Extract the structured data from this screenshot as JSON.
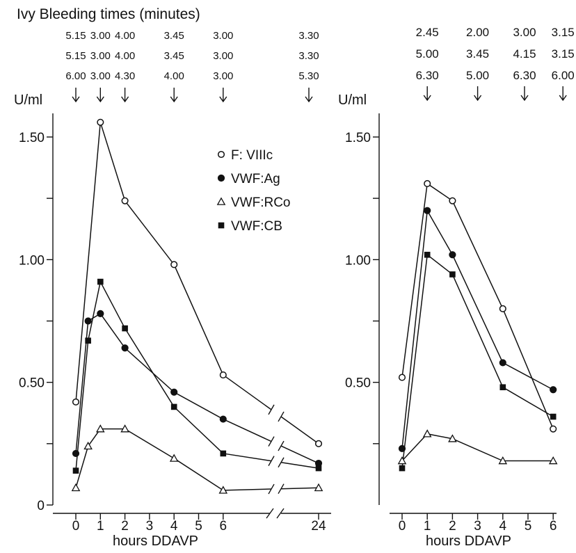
{
  "header": {
    "title": "Ivy Bleeding times (minutes)"
  },
  "chart_data": [
    {
      "type": "line",
      "panel": "left",
      "ylabel": "U/ml",
      "xlabel": "hours DDAVP",
      "ylim": [
        0,
        1.65
      ],
      "yticks": [
        0,
        0.25,
        0.5,
        0.75,
        1.0,
        1.25,
        1.5
      ],
      "ytick_labels": [
        "0",
        "",
        "0.50",
        "",
        "1.00",
        "",
        "1.50"
      ],
      "xticks": [
        0,
        1,
        2,
        3,
        4,
        5,
        6,
        24
      ],
      "xtick_labels": [
        "0",
        "1",
        "2",
        "3",
        "4",
        "5",
        "6",
        "24"
      ],
      "axis_break": "between 6 and 24",
      "legend_position": "upper-middle",
      "bleeding_times": {
        "x": [
          0,
          1,
          2,
          4,
          6,
          24
        ],
        "rows": [
          [
            "5.15",
            "3.00",
            "4.00",
            "3.45",
            "3.00",
            "3.30"
          ],
          [
            "5.15",
            "3.00",
            "4.00",
            "3.45",
            "3.00",
            "3.30"
          ],
          [
            "6.00",
            "3.00",
            "4.30",
            "4.00",
            "3.00",
            "5.30"
          ]
        ]
      },
      "series": [
        {
          "name": "F: VIIIc",
          "marker": "open-circle",
          "x": [
            0,
            1,
            2,
            4,
            6,
            24
          ],
          "y": [
            0.42,
            1.56,
            1.24,
            0.98,
            0.53,
            0.25
          ]
        },
        {
          "name": "VWF:Ag",
          "marker": "filled-circle",
          "x": [
            0,
            0.5,
            1,
            2,
            4,
            6,
            24
          ],
          "y": [
            0.21,
            0.75,
            0.78,
            0.64,
            0.46,
            0.35,
            0.17
          ]
        },
        {
          "name": "VWF:RCo",
          "marker": "open-triangle",
          "x": [
            0,
            0.5,
            1,
            2,
            4,
            6,
            24
          ],
          "y": [
            0.07,
            0.24,
            0.31,
            0.31,
            0.19,
            0.06,
            0.07
          ]
        },
        {
          "name": "VWF:CB",
          "marker": "filled-square",
          "x": [
            0,
            0.5,
            1,
            2,
            4,
            6,
            24
          ],
          "y": [
            0.14,
            0.67,
            0.91,
            0.72,
            0.4,
            0.21,
            0.15
          ]
        }
      ]
    },
    {
      "type": "line",
      "panel": "right",
      "ylabel": "U/ml",
      "xlabel": "hours DDAVP",
      "ylim": [
        0,
        1.65
      ],
      "yticks": [
        0.25,
        0.5,
        0.75,
        1.0,
        1.25,
        1.5
      ],
      "ytick_labels": [
        "",
        "0.50",
        "",
        "1.00",
        "",
        "1.50"
      ],
      "xticks": [
        0,
        1,
        2,
        3,
        4,
        5,
        6
      ],
      "xtick_labels": [
        "0",
        "1",
        "2",
        "3",
        "4",
        "5",
        "6"
      ],
      "bleeding_times": {
        "x": [
          1,
          3,
          5,
          6
        ],
        "rows": [
          [
            "2.45",
            "2.00",
            "3.00",
            "3.15"
          ],
          [
            "5.00",
            "3.45",
            "4.15",
            "3.15"
          ],
          [
            "6.30",
            "5.00",
            "6.30",
            "6.00"
          ]
        ]
      },
      "series": [
        {
          "name": "F: VIIIc",
          "marker": "open-circle",
          "x": [
            0,
            1,
            2,
            4,
            6
          ],
          "y": [
            0.52,
            1.31,
            1.24,
            0.8,
            0.31
          ]
        },
        {
          "name": "VWF:Ag",
          "marker": "filled-circle",
          "x": [
            0,
            1,
            2,
            4,
            6
          ],
          "y": [
            0.23,
            1.2,
            1.02,
            0.58,
            0.47
          ]
        },
        {
          "name": "VWF:RCo",
          "marker": "open-triangle",
          "x": [
            0,
            1,
            2,
            4,
            6
          ],
          "y": [
            0.18,
            0.29,
            0.27,
            0.18,
            0.18
          ]
        },
        {
          "name": "VWF:CB",
          "marker": "filled-square",
          "x": [
            0,
            1,
            2,
            4,
            6
          ],
          "y": [
            0.15,
            1.02,
            0.94,
            0.48,
            0.36
          ]
        }
      ]
    }
  ]
}
